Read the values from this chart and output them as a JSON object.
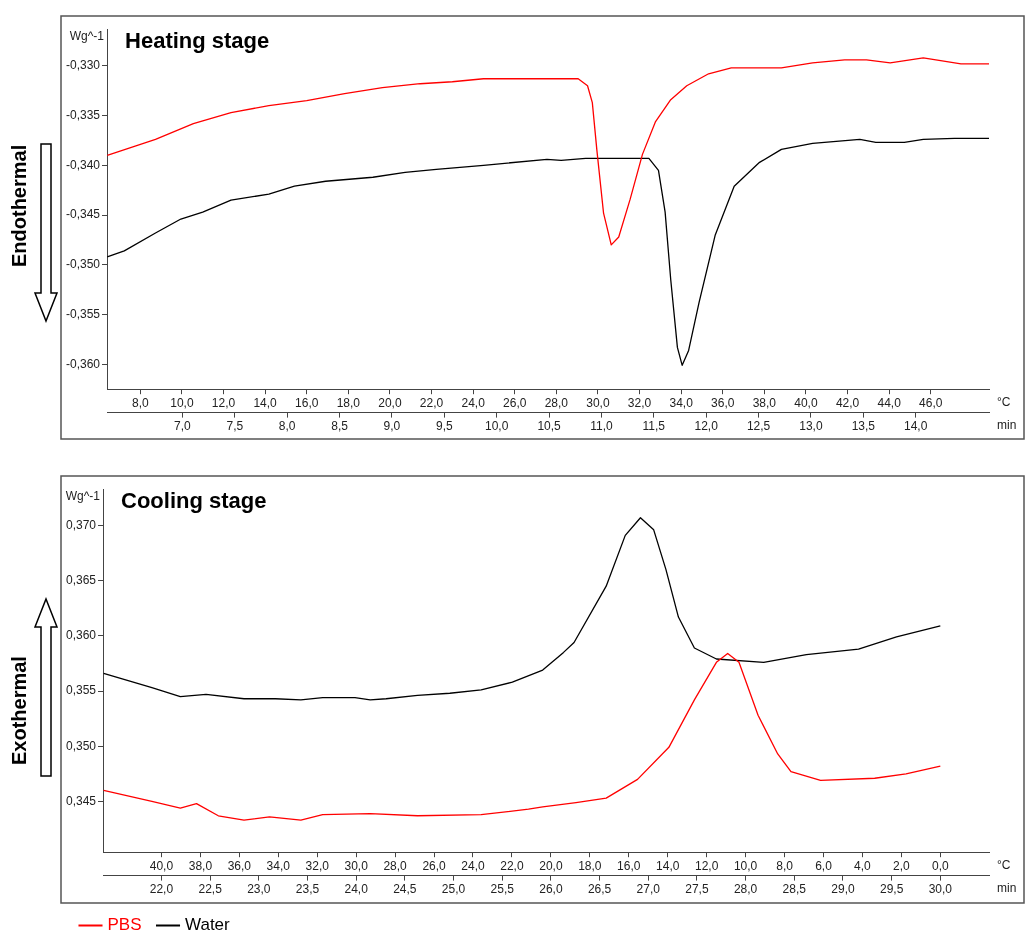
{
  "chart_data": [
    {
      "type": "line",
      "title": "Heating stage",
      "ylabel": "Wg^-1",
      "xlabel": "°C",
      "x2label": "min",
      "annotations": [
        "Endothermal"
      ],
      "grid": false,
      "legend": false,
      "xlim": [
        6.4,
        48.8
      ],
      "x2lim": [
        6.28,
        14.7
      ],
      "ylim": [
        -0.3625,
        -0.3263
      ],
      "xticks": [
        {
          "value": 8,
          "label": "8,0"
        },
        {
          "value": 10,
          "label": "10,0"
        },
        {
          "value": 12,
          "label": "12,0"
        },
        {
          "value": 14,
          "label": "14,0"
        },
        {
          "value": 16,
          "label": "16,0"
        },
        {
          "value": 18,
          "label": "18,0"
        },
        {
          "value": 20,
          "label": "20,0"
        },
        {
          "value": 22,
          "label": "22,0"
        },
        {
          "value": 24,
          "label": "24,0"
        },
        {
          "value": 26,
          "label": "26,0"
        },
        {
          "value": 28,
          "label": "28,0"
        },
        {
          "value": 30,
          "label": "30,0"
        },
        {
          "value": 32,
          "label": "32,0"
        },
        {
          "value": 34,
          "label": "34,0"
        },
        {
          "value": 36,
          "label": "36,0"
        },
        {
          "value": 38,
          "label": "38,0"
        },
        {
          "value": 40,
          "label": "40,0"
        },
        {
          "value": 42,
          "label": "42,0"
        },
        {
          "value": 44,
          "label": "44,0"
        },
        {
          "value": 46,
          "label": "46,0"
        }
      ],
      "x2ticks": [
        {
          "value": 7,
          "label": "7,0"
        },
        {
          "value": 7.5,
          "label": "7,5"
        },
        {
          "value": 8,
          "label": "8,0"
        },
        {
          "value": 8.5,
          "label": "8,5"
        },
        {
          "value": 9,
          "label": "9,0"
        },
        {
          "value": 9.5,
          "label": "9,5"
        },
        {
          "value": 10,
          "label": "10,0"
        },
        {
          "value": 10.5,
          "label": "10,5"
        },
        {
          "value": 11,
          "label": "11,0"
        },
        {
          "value": 11.5,
          "label": "11,5"
        },
        {
          "value": 12,
          "label": "12,0"
        },
        {
          "value": 12.5,
          "label": "12,5"
        },
        {
          "value": 13,
          "label": "13,0"
        },
        {
          "value": 13.5,
          "label": "13,5"
        },
        {
          "value": 14,
          "label": "14,0"
        }
      ],
      "yticks": [
        {
          "value": -0.36,
          "label": "-0,360"
        },
        {
          "value": -0.355,
          "label": "-0,355"
        },
        {
          "value": -0.35,
          "label": "-0,350"
        },
        {
          "value": -0.345,
          "label": "-0,345"
        },
        {
          "value": -0.34,
          "label": "-0,340"
        },
        {
          "value": -0.335,
          "label": "-0,335"
        },
        {
          "value": -0.33,
          "label": "-0,330"
        }
      ],
      "series": [
        {
          "color": "#ff0000",
          "x": [
            6.41,
            8.73,
            10.55,
            12.36,
            14.18,
            16.0,
            17.82,
            19.64,
            21.45,
            23.0,
            24.5,
            29.05,
            29.5,
            29.73,
            29.95,
            30.27,
            30.64,
            31.0,
            31.55,
            32.14,
            32.77,
            33.5,
            34.27,
            35.32,
            36.41,
            38.82,
            40.32,
            41.86,
            42.91,
            44.05,
            45.64,
            46.55,
            47.45,
            48.8
          ],
          "values": [
            -0.339,
            -0.3374,
            -0.3358,
            -0.3347,
            -0.334,
            -0.3335,
            -0.3328,
            -0.3322,
            -0.3318,
            -0.3316,
            -0.3313,
            -0.3313,
            -0.332,
            -0.3337,
            -0.3385,
            -0.3448,
            -0.348,
            -0.3472,
            -0.3434,
            -0.3389,
            -0.3356,
            -0.3334,
            -0.332,
            -0.3308,
            -0.3302,
            -0.3302,
            -0.3297,
            -0.3294,
            -0.3294,
            -0.3297,
            -0.3292,
            -0.3295,
            -0.3298,
            -0.3298
          ]
        },
        {
          "color": "#000000",
          "x": [
            6.41,
            7.23,
            8.73,
            9.95,
            11.0,
            12.36,
            14.18,
            15.41,
            16.91,
            19.18,
            20.73,
            22.23,
            24.5,
            27.55,
            28.23,
            29.41,
            32.45,
            32.91,
            33.23,
            33.5,
            33.82,
            34.05,
            34.36,
            34.86,
            35.64,
            36.55,
            37.77,
            38.82,
            40.32,
            42.59,
            43.36,
            44.73,
            45.64,
            47.14,
            48.8
          ],
          "values": [
            -0.3492,
            -0.3486,
            -0.3468,
            -0.3454,
            -0.3447,
            -0.3435,
            -0.3429,
            -0.3421,
            -0.3416,
            -0.3412,
            -0.3407,
            -0.3404,
            -0.34,
            -0.3394,
            -0.3395,
            -0.3393,
            -0.3393,
            -0.3405,
            -0.3447,
            -0.3515,
            -0.3583,
            -0.3601,
            -0.3586,
            -0.3538,
            -0.347,
            -0.3421,
            -0.3397,
            -0.3384,
            -0.3378,
            -0.3374,
            -0.3377,
            -0.3377,
            -0.3374,
            -0.3373,
            -0.3373
          ]
        }
      ]
    },
    {
      "type": "line",
      "title": "Cooling stage",
      "ylabel": "Wg^-1",
      "xlabel": "°C",
      "x2label": "min",
      "annotations": [
        "Exothermal"
      ],
      "grid": false,
      "legend": "bottom",
      "xlim": [
        43,
        -2.5
      ],
      "x2lim": [
        21.4,
        30.5
      ],
      "ylim": [
        0.3404,
        0.3733
      ],
      "xticks": [
        {
          "value": 40,
          "label": "40,0"
        },
        {
          "value": 38,
          "label": "38,0"
        },
        {
          "value": 36,
          "label": "36,0"
        },
        {
          "value": 34,
          "label": "34,0"
        },
        {
          "value": 32,
          "label": "32,0"
        },
        {
          "value": 30,
          "label": "30,0"
        },
        {
          "value": 28,
          "label": "28,0"
        },
        {
          "value": 26,
          "label": "26,0"
        },
        {
          "value": 24,
          "label": "24,0"
        },
        {
          "value": 22,
          "label": "22,0"
        },
        {
          "value": 20,
          "label": "20,0"
        },
        {
          "value": 18,
          "label": "18,0"
        },
        {
          "value": 16,
          "label": "16,0"
        },
        {
          "value": 14,
          "label": "14,0"
        },
        {
          "value": 12,
          "label": "12,0"
        },
        {
          "value": 10,
          "label": "10,0"
        },
        {
          "value": 8,
          "label": "8,0"
        },
        {
          "value": 6,
          "label": "6,0"
        },
        {
          "value": 4,
          "label": "4,0"
        },
        {
          "value": 2,
          "label": "2,0"
        },
        {
          "value": 0,
          "label": "0,0"
        }
      ],
      "x2ticks": [
        {
          "value": 22,
          "label": "22,0"
        },
        {
          "value": 22.5,
          "label": "22,5"
        },
        {
          "value": 23,
          "label": "23,0"
        },
        {
          "value": 23.5,
          "label": "23,5"
        },
        {
          "value": 24,
          "label": "24,0"
        },
        {
          "value": 24.5,
          "label": "24,5"
        },
        {
          "value": 25,
          "label": "25,0"
        },
        {
          "value": 25.5,
          "label": "25,5"
        },
        {
          "value": 26,
          "label": "26,0"
        },
        {
          "value": 26.5,
          "label": "26,5"
        },
        {
          "value": 27,
          "label": "27,0"
        },
        {
          "value": 27.5,
          "label": "27,5"
        },
        {
          "value": 28,
          "label": "28,0"
        },
        {
          "value": 28.5,
          "label": "28,5"
        },
        {
          "value": 29,
          "label": "29,0"
        },
        {
          "value": 29.5,
          "label": "29,5"
        },
        {
          "value": 30,
          "label": "30,0"
        }
      ],
      "yticks": [
        {
          "value": 0.345,
          "label": "0,345"
        },
        {
          "value": 0.35,
          "label": "0,350"
        },
        {
          "value": 0.355,
          "label": "0,355"
        },
        {
          "value": 0.36,
          "label": "0,360"
        },
        {
          "value": 0.365,
          "label": "0,365"
        },
        {
          "value": 0.37,
          "label": "0,370"
        }
      ],
      "series": [
        {
          "name": "PBS",
          "color": "#ff0000",
          "x": [
            42.97,
            40.49,
            39.03,
            38.2,
            37.08,
            35.76,
            34.45,
            32.84,
            31.72,
            29.28,
            26.85,
            23.58,
            21.15,
            20.42,
            18.71,
            17.16,
            15.55,
            13.94,
            12.63,
            11.5,
            10.92,
            10.34,
            9.36,
            8.35,
            7.67,
            6.15,
            3.37,
            1.76,
            0.0
          ],
          "values": [
            0.346,
            0.345,
            0.3444,
            0.3448,
            0.3437,
            0.3433,
            0.3436,
            0.3433,
            0.3438,
            0.3439,
            0.3437,
            0.3438,
            0.3443,
            0.3445,
            0.3449,
            0.3453,
            0.347,
            0.3499,
            0.3542,
            0.3576,
            0.3584,
            0.3576,
            0.3528,
            0.3493,
            0.3477,
            0.3469,
            0.3471,
            0.3475,
            0.3482
          ]
        },
        {
          "name": "Water",
          "color": "#000000",
          "x": [
            42.97,
            40.49,
            39.03,
            37.71,
            35.76,
            34.15,
            32.84,
            31.72,
            30.06,
            29.28,
            28.46,
            26.85,
            25.19,
            23.58,
            21.98,
            20.42,
            19.35,
            18.81,
            17.16,
            16.18,
            15.4,
            14.72,
            14.09,
            13.45,
            12.63,
            11.5,
            9.07,
            6.88,
            4.2,
            2.25,
            0.0
          ],
          "values": [
            0.3566,
            0.3553,
            0.3545,
            0.3547,
            0.3543,
            0.3543,
            0.3542,
            0.3544,
            0.3544,
            0.3542,
            0.3543,
            0.3546,
            0.3548,
            0.3551,
            0.3558,
            0.3569,
            0.3585,
            0.3594,
            0.3645,
            0.3691,
            0.3707,
            0.3696,
            0.366,
            0.3617,
            0.3589,
            0.3579,
            0.3576,
            0.3583,
            0.3588,
            0.3599,
            0.3609
          ]
        }
      ]
    }
  ]
}
